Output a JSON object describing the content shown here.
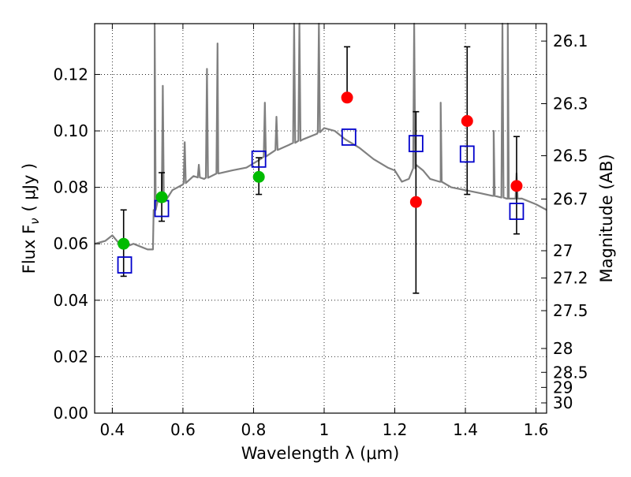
{
  "chart_data": {
    "type": "scatter",
    "xlabel": "Wavelength  λ (μm)",
    "ylabel": "Flux  F",
    "ylabel_sub": "ν",
    "ylabel_unit": "( μJy )",
    "y2label": "Magnitude (AB)",
    "xlim": [
      0.35,
      1.63
    ],
    "ylim": [
      0.0,
      0.138
    ],
    "x_ticks": [
      0.4,
      0.6,
      0.8,
      1.0,
      1.2,
      1.4,
      1.6
    ],
    "x_tick_labels": [
      "0.4",
      "0.6",
      "0.8",
      "1",
      "1.2",
      "1.4",
      "1.6"
    ],
    "y_ticks": [
      0.0,
      0.02,
      0.04,
      0.06,
      0.08,
      0.1,
      0.12
    ],
    "y_tick_labels": [
      "0.00",
      "0.02",
      "0.04",
      "0.06",
      "0.08",
      "0.10",
      "0.12"
    ],
    "y2_ticks": [
      26.1,
      26.3,
      26.5,
      26.7,
      27,
      27.2,
      27.5,
      28,
      28.5,
      29,
      30
    ],
    "y2_tick_labels": [
      "26.1",
      "26.3",
      "26.5",
      "26.7",
      "27",
      "27.2",
      "27.5",
      "28",
      "28.5",
      "29",
      "30"
    ],
    "grid": true,
    "colors": {
      "spectrum": "#808080",
      "model": "#0000cc",
      "detected_optical": "#00bb00",
      "detected_nir": "#ff0000",
      "errorbar": "#000000"
    },
    "spectrum": {
      "x": [
        0.35,
        0.38,
        0.4,
        0.42,
        0.44,
        0.46,
        0.48,
        0.5,
        0.515,
        0.52,
        0.53,
        0.55,
        0.57,
        0.6,
        0.63,
        0.66,
        0.7,
        0.74,
        0.78,
        0.82,
        0.86,
        0.9,
        0.94,
        0.98,
        1.0,
        1.03,
        1.06,
        1.1,
        1.14,
        1.18,
        1.2,
        1.22,
        1.24,
        1.26,
        1.28,
        1.3,
        1.33,
        1.36,
        1.4,
        1.44,
        1.48,
        1.52,
        1.56,
        1.6,
        1.63
      ],
      "y": [
        0.06,
        0.061,
        0.063,
        0.06,
        0.059,
        0.06,
        0.059,
        0.058,
        0.058,
        0.072,
        0.076,
        0.075,
        0.079,
        0.081,
        0.084,
        0.083,
        0.085,
        0.086,
        0.087,
        0.09,
        0.093,
        0.095,
        0.097,
        0.099,
        0.101,
        0.1,
        0.097,
        0.094,
        0.09,
        0.087,
        0.086,
        0.082,
        0.083,
        0.088,
        0.086,
        0.083,
        0.082,
        0.08,
        0.079,
        0.078,
        0.077,
        0.076,
        0.076,
        0.074,
        0.072
      ]
    },
    "emission_lines": [
      {
        "x": 0.52,
        "peak": 0.138
      },
      {
        "x": 0.543,
        "peak": 0.116
      },
      {
        "x": 0.605,
        "peak": 0.096
      },
      {
        "x": 0.645,
        "peak": 0.088
      },
      {
        "x": 0.668,
        "peak": 0.122
      },
      {
        "x": 0.698,
        "peak": 0.131
      },
      {
        "x": 0.832,
        "peak": 0.11
      },
      {
        "x": 0.865,
        "peak": 0.105
      },
      {
        "x": 0.915,
        "peak": 0.138
      },
      {
        "x": 0.93,
        "peak": 0.138
      },
      {
        "x": 0.985,
        "peak": 0.138
      },
      {
        "x": 1.255,
        "peak": 0.138
      },
      {
        "x": 1.33,
        "peak": 0.11
      },
      {
        "x": 1.48,
        "peak": 0.1
      },
      {
        "x": 1.505,
        "peak": 0.138
      },
      {
        "x": 1.52,
        "peak": 0.138
      },
      {
        "x": 1.545,
        "peak": 0.085
      }
    ],
    "model_photometry": {
      "name": "",
      "x": [
        0.435,
        0.54,
        0.815,
        1.07,
        1.26,
        1.405,
        1.545
      ],
      "y": [
        0.0525,
        0.0725,
        0.09,
        0.0978,
        0.0955,
        0.0918,
        0.0715
      ]
    },
    "observed_optical": {
      "x": [
        0.432,
        0.54,
        0.815
      ],
      "y": [
        0.06,
        0.0765,
        0.0837
      ],
      "err_low": [
        0.0485,
        0.068,
        0.0775
      ],
      "err_high": [
        0.072,
        0.0852,
        0.0905
      ]
    },
    "observed_nir": {
      "x": [
        1.065,
        1.26,
        1.405,
        1.545
      ],
      "y": [
        0.1118,
        0.0748,
        0.1035,
        0.0805
      ],
      "err_low": [
        0.1118,
        0.0425,
        0.0775,
        0.0635
      ],
      "err_high": [
        0.1298,
        0.1068,
        0.1298,
        0.098
      ]
    }
  }
}
